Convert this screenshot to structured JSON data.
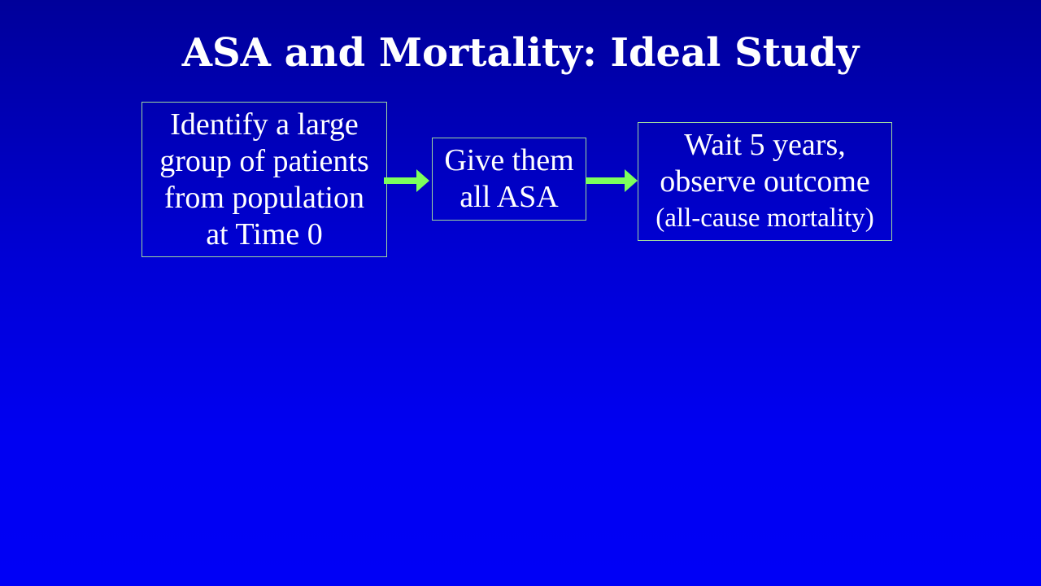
{
  "title": "ASA and Mortality: Ideal Study",
  "steps": [
    {
      "lines": [
        "Identify a large",
        "group of patients",
        "from population",
        "at Time 0"
      ]
    },
    {
      "lines": [
        "Give them",
        "all ASA"
      ]
    },
    {
      "lines": [
        "Wait 5 years,",
        "observe outcome",
        "(all-cause mortality)"
      ]
    }
  ],
  "colors": {
    "background_top": "#00009a",
    "background_bottom": "#0000f6",
    "text": "#ffffff",
    "box_border": "#9fd79f",
    "arrow": "#7cff5c"
  },
  "icons": {
    "connector": "right-arrow-icon"
  }
}
